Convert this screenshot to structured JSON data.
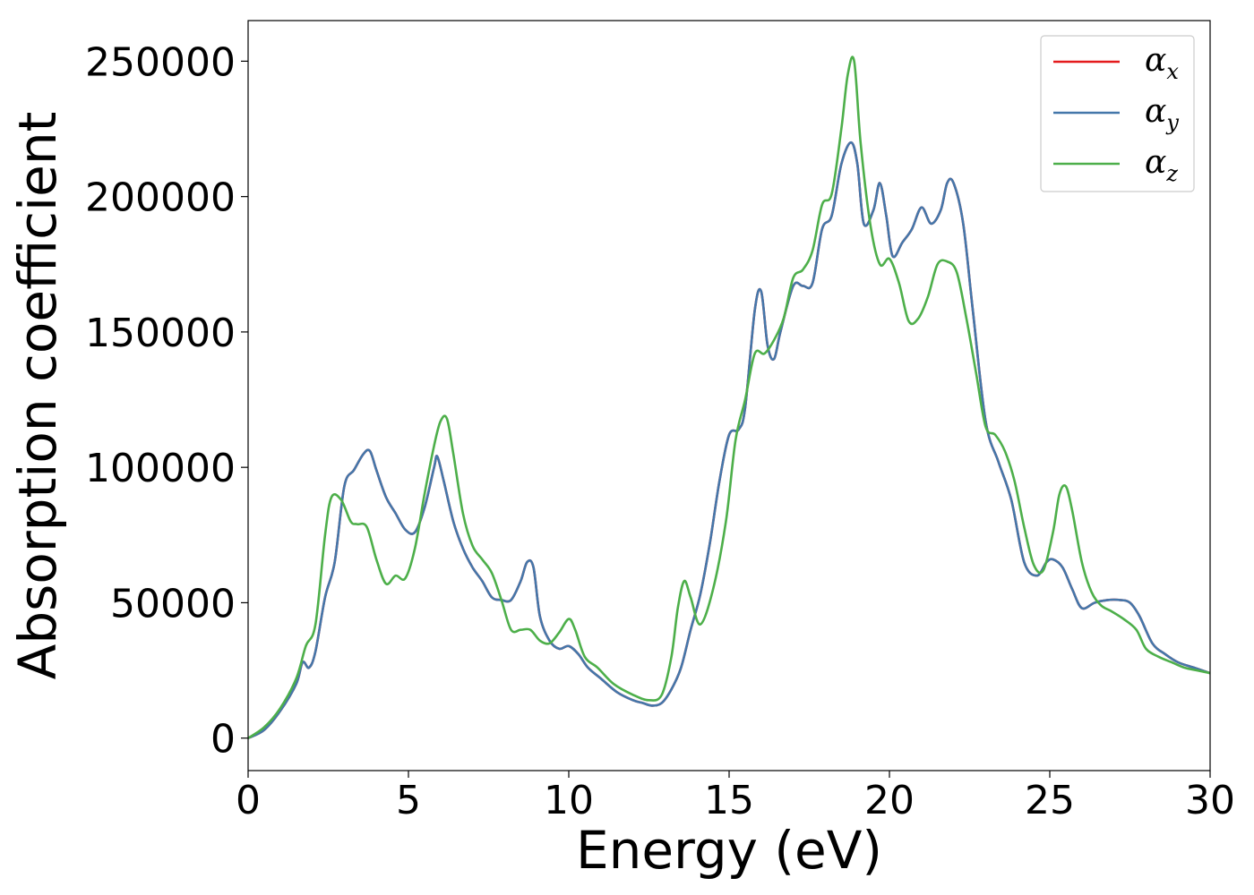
{
  "chart_data": {
    "type": "line",
    "title": "",
    "xlabel": "Energy (eV)",
    "ylabel": "Absorption coefficient",
    "xlim": [
      0,
      30
    ],
    "ylim": [
      -12000,
      265000
    ],
    "xticks": [
      0,
      5,
      10,
      15,
      20,
      25,
      30
    ],
    "yticks": [
      0,
      50000,
      100000,
      150000,
      200000,
      250000
    ],
    "grid": false,
    "legend_position": "top-right",
    "series": [
      {
        "name": "α_x",
        "base": "α",
        "sub": "x",
        "color": "#e41a1c",
        "x": [
          0,
          0.5,
          1.0,
          1.5,
          1.7,
          1.9,
          2.1,
          2.4,
          2.7,
          3.0,
          3.3,
          3.6,
          3.8,
          4.0,
          4.3,
          4.6,
          4.9,
          5.2,
          5.5,
          5.8,
          5.9,
          6.1,
          6.4,
          6.7,
          7.0,
          7.3,
          7.6,
          7.9,
          8.2,
          8.5,
          8.7,
          8.9,
          9.1,
          9.4,
          9.7,
          10.0,
          10.3,
          10.6,
          11.0,
          11.5,
          12.0,
          12.3,
          12.6,
          12.9,
          13.2,
          13.5,
          13.8,
          14.1,
          14.4,
          14.7,
          15.0,
          15.3,
          15.5,
          15.8,
          16.0,
          16.2,
          16.4,
          16.6,
          17.0,
          17.3,
          17.6,
          17.9,
          18.2,
          18.5,
          18.8,
          19.0,
          19.2,
          19.5,
          19.7,
          19.9,
          20.1,
          20.4,
          20.7,
          21.0,
          21.3,
          21.6,
          21.8,
          22.0,
          22.3,
          22.6,
          23.0,
          23.4,
          23.8,
          24.2,
          24.6,
          24.9,
          25.1,
          25.4,
          25.7,
          26.0,
          26.4,
          26.8,
          27.2,
          27.5,
          27.8,
          28.2,
          28.6,
          29.0,
          29.5,
          30.0
        ],
        "y": [
          0,
          3000,
          10000,
          20000,
          28000,
          26000,
          32000,
          52000,
          65000,
          93000,
          99000,
          105000,
          106000,
          99000,
          89000,
          83000,
          77000,
          76000,
          85000,
          100000,
          104000,
          95000,
          80000,
          70000,
          63000,
          58000,
          52000,
          51000,
          51000,
          58000,
          65000,
          63000,
          45000,
          36000,
          33000,
          34000,
          31000,
          26000,
          22000,
          17000,
          14000,
          13000,
          12000,
          13000,
          18000,
          26000,
          40000,
          53000,
          72000,
          95000,
          112000,
          114000,
          122000,
          158000,
          165000,
          145000,
          140000,
          150000,
          167000,
          167000,
          168000,
          188000,
          193000,
          212000,
          220000,
          212000,
          190000,
          195000,
          205000,
          193000,
          178000,
          183000,
          188000,
          196000,
          190000,
          195000,
          205000,
          205000,
          190000,
          158000,
          117000,
          102000,
          88000,
          65000,
          60000,
          65000,
          66000,
          63000,
          55000,
          48000,
          50000,
          51000,
          51000,
          50000,
          45000,
          35000,
          31000,
          28000,
          26000,
          24000
        ]
      },
      {
        "name": "α_y",
        "base": "α",
        "sub": "y",
        "color": "#4477aa",
        "x": [
          0,
          0.5,
          1.0,
          1.5,
          1.7,
          1.9,
          2.1,
          2.4,
          2.7,
          3.0,
          3.3,
          3.6,
          3.8,
          4.0,
          4.3,
          4.6,
          4.9,
          5.2,
          5.5,
          5.8,
          5.9,
          6.1,
          6.4,
          6.7,
          7.0,
          7.3,
          7.6,
          7.9,
          8.2,
          8.5,
          8.7,
          8.9,
          9.1,
          9.4,
          9.7,
          10.0,
          10.3,
          10.6,
          11.0,
          11.5,
          12.0,
          12.3,
          12.6,
          12.9,
          13.2,
          13.5,
          13.8,
          14.1,
          14.4,
          14.7,
          15.0,
          15.3,
          15.5,
          15.8,
          16.0,
          16.2,
          16.4,
          16.6,
          17.0,
          17.3,
          17.6,
          17.9,
          18.2,
          18.5,
          18.8,
          19.0,
          19.2,
          19.5,
          19.7,
          19.9,
          20.1,
          20.4,
          20.7,
          21.0,
          21.3,
          21.6,
          21.8,
          22.0,
          22.3,
          22.6,
          23.0,
          23.4,
          23.8,
          24.2,
          24.6,
          24.9,
          25.1,
          25.4,
          25.7,
          26.0,
          26.4,
          26.8,
          27.2,
          27.5,
          27.8,
          28.2,
          28.6,
          29.0,
          29.5,
          30.0
        ],
        "y": [
          0,
          3000,
          10000,
          20000,
          28000,
          26000,
          32000,
          52000,
          65000,
          93000,
          99000,
          105000,
          106000,
          99000,
          89000,
          83000,
          77000,
          76000,
          85000,
          100000,
          104000,
          95000,
          80000,
          70000,
          63000,
          58000,
          52000,
          51000,
          51000,
          58000,
          65000,
          63000,
          45000,
          36000,
          33000,
          34000,
          31000,
          26000,
          22000,
          17000,
          14000,
          13000,
          12000,
          13000,
          18000,
          26000,
          40000,
          53000,
          72000,
          95000,
          112000,
          114000,
          122000,
          158000,
          165000,
          145000,
          140000,
          150000,
          167000,
          167000,
          168000,
          188000,
          193000,
          212000,
          220000,
          212000,
          190000,
          195000,
          205000,
          193000,
          178000,
          183000,
          188000,
          196000,
          190000,
          195000,
          205000,
          205000,
          190000,
          158000,
          117000,
          102000,
          88000,
          65000,
          60000,
          65000,
          66000,
          63000,
          55000,
          48000,
          50000,
          51000,
          51000,
          50000,
          45000,
          35000,
          31000,
          28000,
          26000,
          24000
        ]
      },
      {
        "name": "α_z",
        "base": "α",
        "sub": "z",
        "color": "#4daf4a",
        "x": [
          0,
          0.5,
          1.0,
          1.5,
          1.8,
          2.1,
          2.4,
          2.6,
          2.9,
          3.2,
          3.4,
          3.7,
          4.0,
          4.3,
          4.6,
          4.9,
          5.2,
          5.5,
          5.8,
          6.0,
          6.2,
          6.4,
          6.7,
          7.0,
          7.3,
          7.6,
          7.9,
          8.2,
          8.5,
          8.8,
          9.1,
          9.4,
          9.7,
          10.0,
          10.2,
          10.5,
          10.9,
          11.4,
          12.0,
          12.5,
          12.9,
          13.2,
          13.4,
          13.6,
          13.8,
          14.1,
          14.5,
          14.9,
          15.2,
          15.5,
          15.8,
          16.1,
          16.4,
          16.7,
          17.0,
          17.3,
          17.6,
          17.9,
          18.2,
          18.5,
          18.7,
          18.9,
          19.1,
          19.4,
          19.7,
          20.0,
          20.3,
          20.6,
          20.9,
          21.2,
          21.5,
          21.8,
          22.1,
          22.4,
          22.7,
          23.0,
          23.3,
          23.6,
          23.9,
          24.2,
          24.5,
          24.8,
          25.1,
          25.3,
          25.5,
          25.7,
          26.0,
          26.3,
          26.6,
          26.9,
          27.3,
          27.7,
          28.0,
          28.4,
          28.8,
          29.2,
          29.6,
          30.0
        ],
        "y": [
          0,
          4000,
          11000,
          22000,
          34000,
          42000,
          75000,
          89000,
          88000,
          80000,
          79000,
          78000,
          66000,
          57000,
          60000,
          59000,
          70000,
          90000,
          108000,
          117000,
          118000,
          105000,
          83000,
          71000,
          66000,
          61000,
          51000,
          40000,
          40000,
          40000,
          36000,
          35000,
          39000,
          44000,
          40000,
          30000,
          26000,
          20000,
          16000,
          14000,
          16000,
          30000,
          48000,
          58000,
          52000,
          42000,
          55000,
          80000,
          110000,
          125000,
          142000,
          142000,
          147000,
          155000,
          170000,
          173000,
          180000,
          197000,
          201000,
          225000,
          245000,
          250000,
          220000,
          190000,
          175000,
          177000,
          168000,
          154000,
          155000,
          163000,
          175000,
          176000,
          172000,
          155000,
          135000,
          115000,
          112000,
          106000,
          95000,
          78000,
          64000,
          62000,
          76000,
          90000,
          93000,
          84000,
          65000,
          54000,
          49000,
          47000,
          44000,
          40000,
          33000,
          30000,
          28000,
          26000,
          25000,
          24000
        ]
      }
    ]
  }
}
